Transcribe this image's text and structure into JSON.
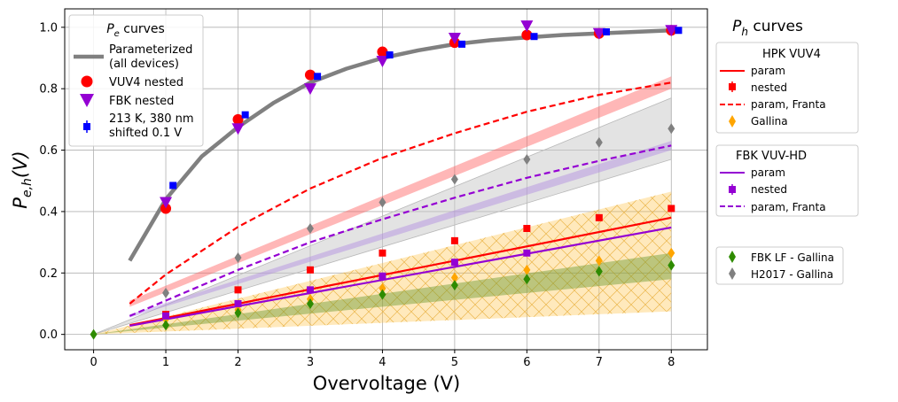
{
  "chart_data": {
    "type": "scatter",
    "xlabel": "Overvoltage (V)",
    "ylabel_main": "P",
    "ylabel_sub": "e,h",
    "ylabel_arg": "(V)",
    "xlim": [
      -0.4,
      8.5
    ],
    "ylim": [
      -0.05,
      1.06
    ],
    "xticks": [
      "0",
      "1",
      "2",
      "3",
      "4",
      "5",
      "6",
      "7",
      "8"
    ],
    "yticks": [
      "0.0",
      "0.2",
      "0.4",
      "0.6",
      "0.8",
      "1.0"
    ],
    "grid": true,
    "colors": {
      "gray_curve": "#808080",
      "red": "#ff0000",
      "purple": "#9400d3",
      "blue": "#0000ff",
      "orange": "#ffa500",
      "green": "#2e8b00",
      "gray_marker": "#808080"
    },
    "series": [
      {
        "key": "pe_param",
        "name": "Parameterized (all devices)",
        "style": "line",
        "x": [
          0.5,
          1,
          1.5,
          2,
          2.5,
          3,
          3.5,
          4,
          4.5,
          5,
          5.5,
          6,
          6.5,
          7,
          7.5,
          8
        ],
        "y": [
          0.24,
          0.44,
          0.58,
          0.675,
          0.755,
          0.82,
          0.865,
          0.9,
          0.925,
          0.945,
          0.958,
          0.967,
          0.975,
          0.98,
          0.985,
          0.99
        ]
      },
      {
        "key": "pe_vuv4",
        "name": "VUV4 nested",
        "style": "circle",
        "x": [
          1,
          2,
          3,
          4,
          5,
          6,
          7,
          8
        ],
        "y": [
          0.41,
          0.7,
          0.845,
          0.92,
          0.95,
          0.975,
          0.98,
          0.99
        ]
      },
      {
        "key": "pe_fbk",
        "name": "FBK nested",
        "style": "triangle_down",
        "x": [
          1,
          2,
          3,
          4,
          5,
          6,
          7,
          8
        ],
        "y": [
          0.43,
          0.67,
          0.8,
          0.89,
          0.965,
          1.005,
          0.98,
          0.99
        ]
      },
      {
        "key": "pe_213k",
        "name": "213 K, 380 nm shifted 0.1 V",
        "style": "square",
        "x": [
          1.1,
          2.1,
          3.1,
          4.1,
          5.1,
          6.1,
          7.1,
          8.1
        ],
        "y": [
          0.485,
          0.715,
          0.84,
          0.91,
          0.945,
          0.97,
          0.985,
          0.99
        ]
      },
      {
        "key": "hpk_param",
        "name": "param (HPK VUV4)",
        "style": "line",
        "x": [
          0.5,
          8
        ],
        "y": [
          0.03,
          0.38
        ]
      },
      {
        "key": "hpk_nested",
        "name": "nested (HPK VUV4)",
        "style": "square",
        "x": [
          1,
          2,
          3,
          4,
          5,
          6,
          7,
          8
        ],
        "y": [
          0.065,
          0.145,
          0.21,
          0.265,
          0.305,
          0.345,
          0.38,
          0.41
        ]
      },
      {
        "key": "hpk_franta",
        "name": "param, Franta (HPK VUV4)",
        "style": "dashed",
        "x": [
          0.5,
          1,
          2,
          3,
          4,
          5,
          6,
          7,
          8
        ],
        "y": [
          0.1,
          0.195,
          0.35,
          0.475,
          0.575,
          0.655,
          0.725,
          0.78,
          0.82
        ]
      },
      {
        "key": "hpk_gallina",
        "name": "Gallina (HPK VUV4)",
        "style": "diamond",
        "x": [
          1,
          2,
          3,
          4,
          5,
          6,
          7,
          8
        ],
        "y": [
          0.05,
          0.08,
          0.115,
          0.15,
          0.185,
          0.21,
          0.24,
          0.265
        ]
      },
      {
        "key": "fbk_param",
        "name": "param (FBK VUV-HD)",
        "style": "line",
        "x": [
          0.5,
          8
        ],
        "y": [
          0.028,
          0.348
        ]
      },
      {
        "key": "fbk_nested",
        "name": "nested (FBK VUV-HD)",
        "style": "square",
        "x": [
          1,
          2,
          3,
          4,
          5,
          6
        ],
        "y": [
          0.06,
          0.1,
          0.145,
          0.19,
          0.235,
          0.265
        ]
      },
      {
        "key": "fbk_franta",
        "name": "param, Franta (FBK VUV-HD)",
        "style": "dashed",
        "x": [
          0.5,
          1,
          2,
          3,
          4,
          5,
          6,
          7,
          8
        ],
        "y": [
          0.06,
          0.11,
          0.21,
          0.3,
          0.375,
          0.445,
          0.51,
          0.565,
          0.615
        ]
      },
      {
        "key": "fbk_lf_gallina",
        "name": "FBK LF - Gallina",
        "style": "diamond",
        "x": [
          0,
          1,
          2,
          3,
          4,
          5,
          6,
          7,
          8
        ],
        "y": [
          0.0,
          0.03,
          0.07,
          0.1,
          0.13,
          0.16,
          0.18,
          0.205,
          0.225
        ]
      },
      {
        "key": "h2017_gallina",
        "name": "H2017 - Gallina",
        "style": "diamond",
        "x": [
          1,
          2,
          3,
          4,
          5,
          6,
          7,
          8
        ],
        "y": [
          0.135,
          0.25,
          0.345,
          0.43,
          0.505,
          0.57,
          0.625,
          0.67
        ]
      }
    ],
    "bands": [
      {
        "key": "band_red",
        "x": [
          0.5,
          8
        ],
        "y_lo": [
          0.09,
          0.8
        ],
        "y_hi": [
          0.11,
          0.84
        ],
        "note": "Franta HPK uncertainty"
      },
      {
        "key": "band_gray",
        "x": [
          0,
          8
        ],
        "y_lo": [
          0,
          0.57
        ],
        "y_hi": [
          0,
          0.77
        ],
        "note": "H2017 Gallina"
      },
      {
        "key": "band_purple",
        "x": [
          0.5,
          8
        ],
        "y_lo": [
          0.055,
          0.6
        ],
        "y_hi": [
          0.065,
          0.63
        ],
        "note": "Franta FBK uncertainty"
      },
      {
        "key": "band_orange",
        "x": [
          0,
          8
        ],
        "y_lo": [
          0,
          0.075
        ],
        "y_hi": [
          0,
          0.465
        ],
        "note": "HPK Gallina"
      },
      {
        "key": "band_green",
        "x": [
          0,
          8
        ],
        "y_lo": [
          0,
          0.18
        ],
        "y_hi": [
          0,
          0.265
        ],
        "note": "FBK LF Gallina"
      }
    ]
  },
  "legend_pe": {
    "title_main": "P",
    "title_sub": "e",
    "title_rest": " curves",
    "entries": [
      {
        "line1": "Parameterized",
        "line2": "(all devices)"
      },
      {
        "line1": "VUV4 nested"
      },
      {
        "line1": "FBK nested"
      },
      {
        "line1": "213 K, 380 nm",
        "line2": "shifted 0.1 V"
      }
    ]
  },
  "legend_ph": {
    "title_main": "P",
    "title_sub": "h",
    "title_rest": " curves"
  },
  "legend_hpk": {
    "title": "HPK VUV4",
    "entries": [
      "param",
      "nested",
      "param, Franta",
      "Gallina"
    ]
  },
  "legend_fbk": {
    "title": "FBK VUV-HD",
    "entries": [
      "param",
      "nested",
      "param, Franta"
    ]
  },
  "legend_gallina": {
    "entries": [
      "FBK LF - Gallina",
      "H2017 - Gallina"
    ]
  }
}
